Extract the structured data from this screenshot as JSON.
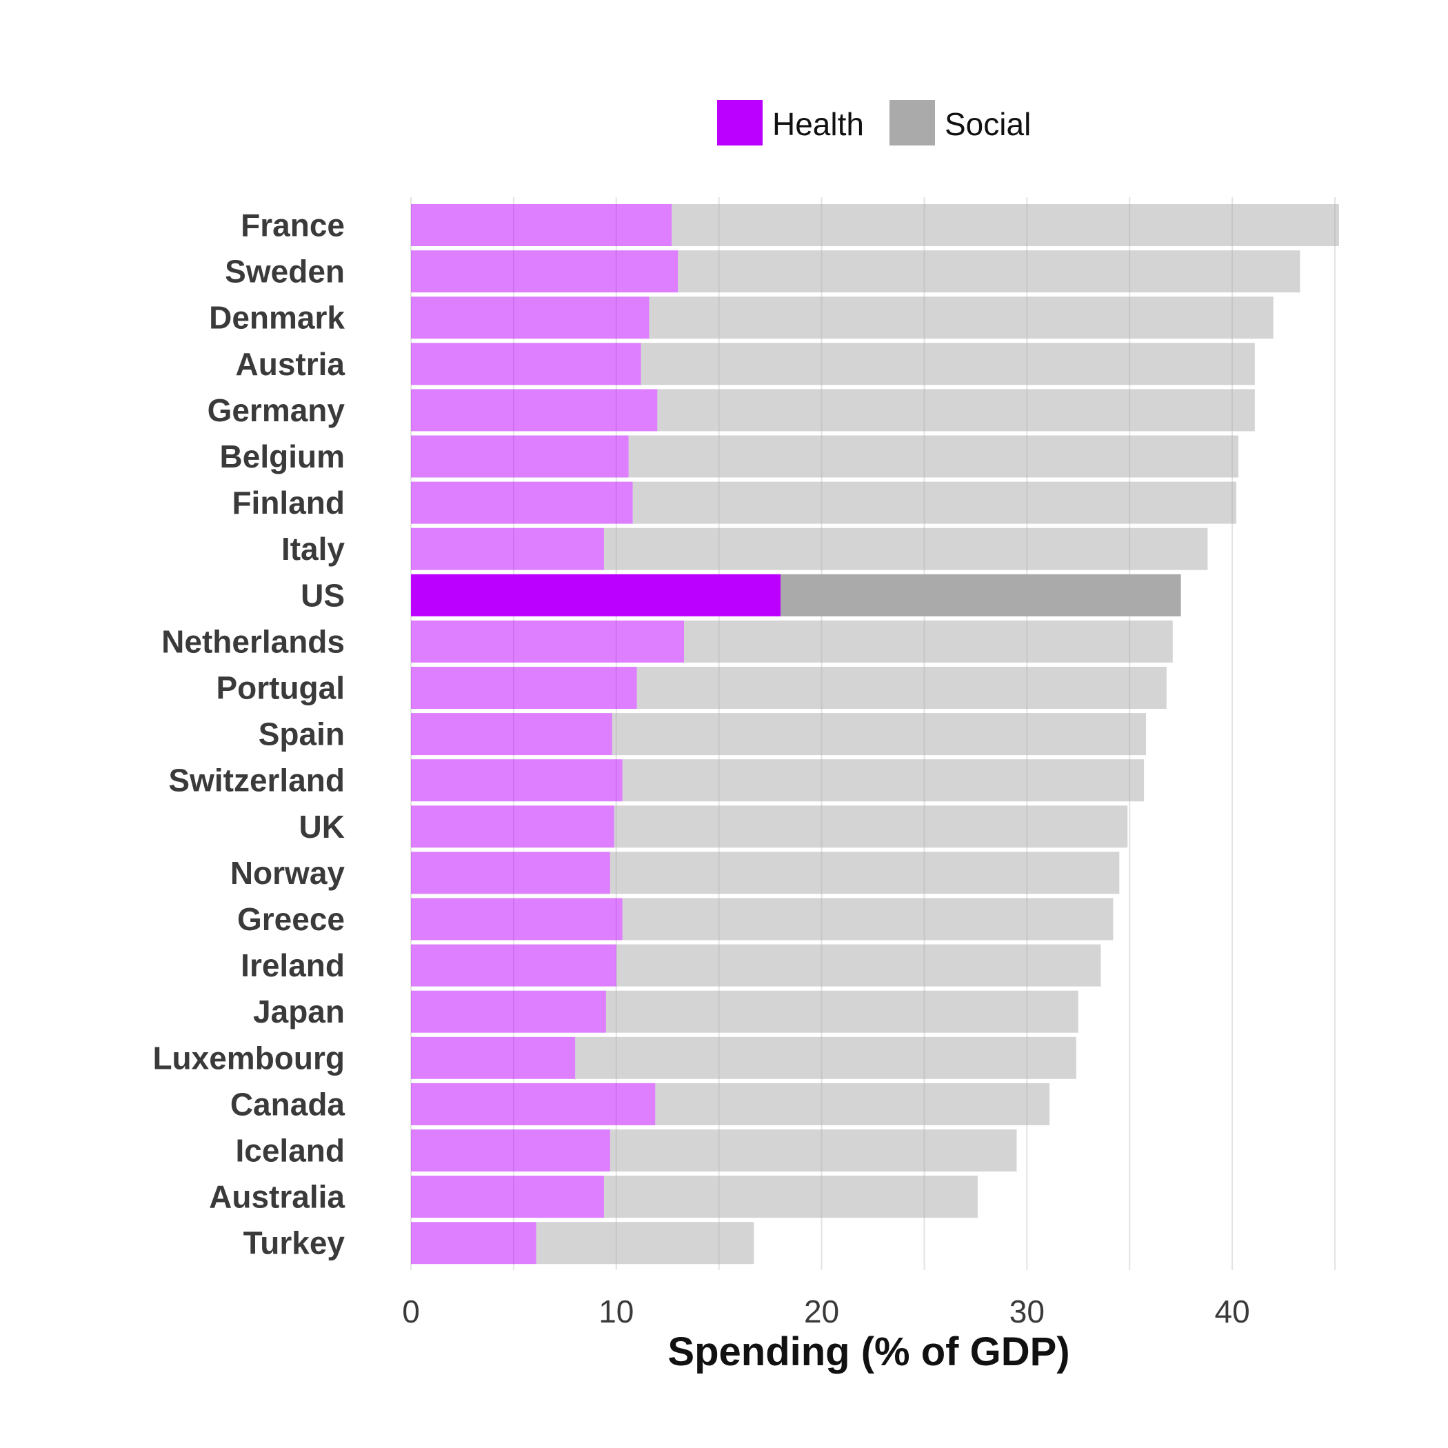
{
  "chart_data": {
    "type": "bar",
    "orientation": "horizontal",
    "stacked": true,
    "xlabel": "Spending (% of GDP)",
    "ylabel": "",
    "xlim": [
      0,
      45
    ],
    "xticks": [
      0,
      10,
      20,
      30,
      40
    ],
    "grid": true,
    "legend_position": "top",
    "highlight_category": "US",
    "categories": [
      "France",
      "Sweden",
      "Denmark",
      "Austria",
      "Germany",
      "Belgium",
      "Finland",
      "Italy",
      "US",
      "Netherlands",
      "Portugal",
      "Spain",
      "Switzerland",
      "UK",
      "Norway",
      "Greece",
      "Ireland",
      "Japan",
      "Luxembourg",
      "Canada",
      "Iceland",
      "Australia",
      "Turkey"
    ],
    "series": [
      {
        "name": "Health",
        "color": "#bb00ff",
        "values": [
          12.7,
          13.0,
          11.6,
          11.2,
          12.0,
          10.6,
          10.8,
          9.4,
          18.0,
          13.3,
          11.0,
          9.8,
          10.3,
          9.9,
          9.7,
          10.3,
          10.0,
          9.5,
          8.0,
          11.9,
          9.7,
          9.4,
          6.1
        ]
      },
      {
        "name": "Social",
        "color": "#aaaaaa",
        "values": [
          32.5,
          30.3,
          30.4,
          29.9,
          29.1,
          29.7,
          29.4,
          29.4,
          19.5,
          23.8,
          25.8,
          26.0,
          25.4,
          25.0,
          24.8,
          23.9,
          23.6,
          23.0,
          24.4,
          19.2,
          19.8,
          18.2,
          10.6
        ]
      }
    ]
  }
}
